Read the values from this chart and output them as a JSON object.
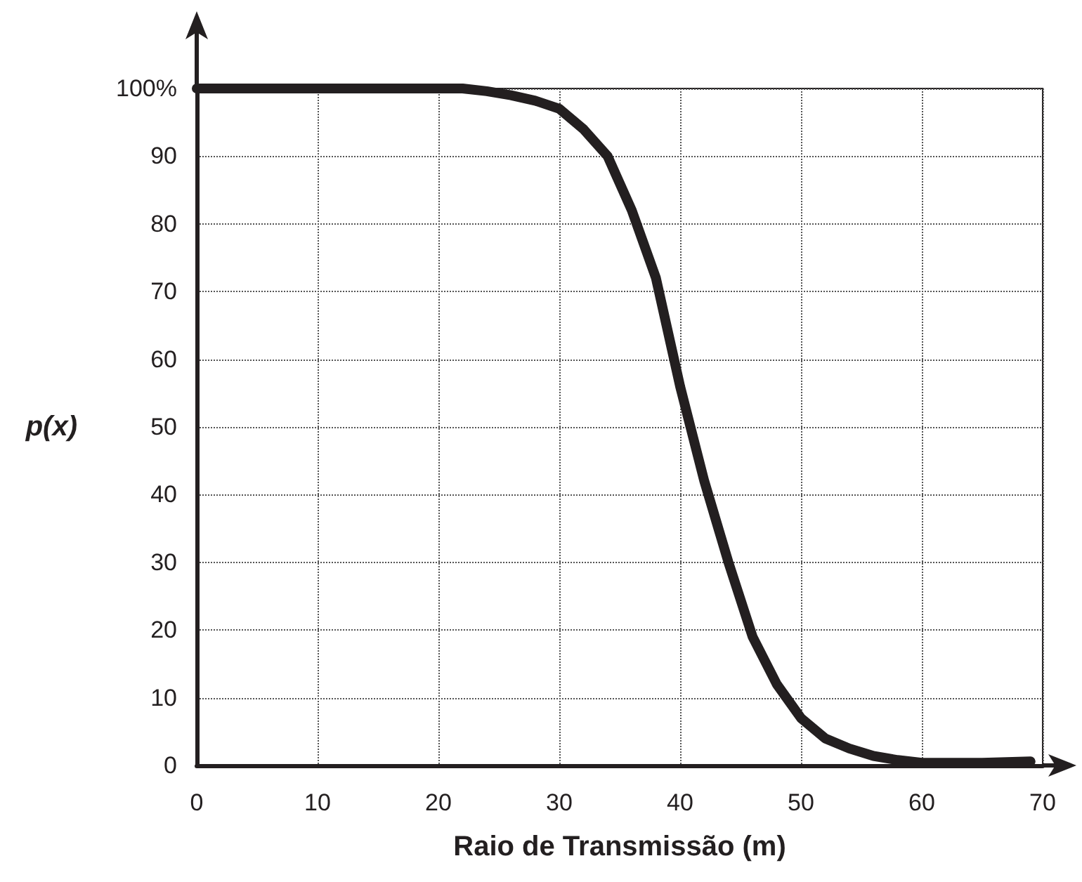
{
  "chart_data": {
    "type": "line",
    "xlabel": "Raio de Transmissão (m)",
    "ylabel": "p(x)",
    "x": [
      0,
      10,
      20,
      22,
      24,
      26,
      28,
      30,
      32,
      34,
      36,
      38,
      40,
      42,
      44,
      46,
      48,
      50,
      52,
      54,
      56,
      58,
      60,
      65,
      69
    ],
    "series": [
      {
        "color": "#231f20",
        "values": [
          100,
          100,
          100,
          100,
          99.6,
          99,
          98.2,
          97,
          94,
          90,
          82,
          72,
          56,
          42,
          30,
          19,
          12,
          7,
          4,
          2.5,
          1.4,
          0.8,
          0.4,
          0.4,
          0.6
        ]
      }
    ],
    "xlim": [
      0,
      70
    ],
    "ylim": [
      0,
      100
    ],
    "xticks": [
      0,
      10,
      20,
      30,
      40,
      50,
      60,
      70
    ],
    "yticks": [
      0,
      10,
      20,
      30,
      40,
      50,
      60,
      70,
      80,
      90,
      {
        "value": 100,
        "label": "100%"
      }
    ],
    "grid": true,
    "line_style": "solid"
  }
}
